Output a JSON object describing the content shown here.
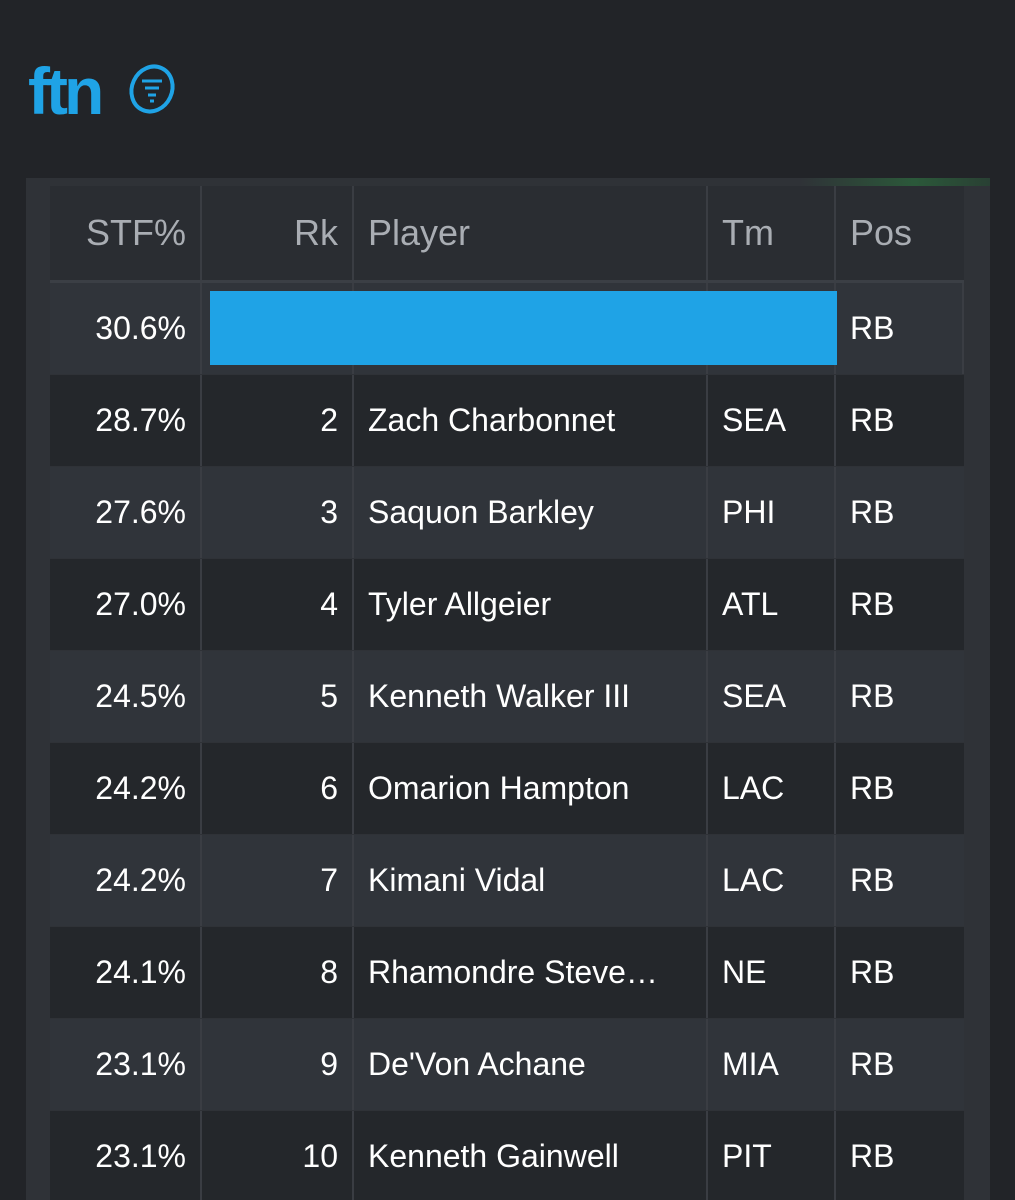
{
  "brand": {
    "logo_text": "ftn",
    "accent": "#1fa3e6"
  },
  "table": {
    "columns": [
      "STF%",
      "Rk",
      "Player",
      "Tm",
      "Pos"
    ],
    "highlight_color": "#1fa3e6",
    "rows": [
      {
        "stf": "30.6%",
        "rk": "",
        "player": "",
        "tm": "",
        "pos": "RB"
      },
      {
        "stf": "28.7%",
        "rk": "2",
        "player": "Zach Charbonnet",
        "tm": "SEA",
        "pos": "RB"
      },
      {
        "stf": "27.6%",
        "rk": "3",
        "player": "Saquon Barkley",
        "tm": "PHI",
        "pos": "RB"
      },
      {
        "stf": "27.0%",
        "rk": "4",
        "player": "Tyler Allgeier",
        "tm": "ATL",
        "pos": "RB"
      },
      {
        "stf": "24.5%",
        "rk": "5",
        "player": "Kenneth Walker III",
        "tm": "SEA",
        "pos": "RB"
      },
      {
        "stf": "24.2%",
        "rk": "6",
        "player": "Omarion Hampton",
        "tm": "LAC",
        "pos": "RB"
      },
      {
        "stf": "24.2%",
        "rk": "7",
        "player": "Kimani Vidal",
        "tm": "LAC",
        "pos": "RB"
      },
      {
        "stf": "24.1%",
        "rk": "8",
        "player": "Rhamondre Steve…",
        "tm": "NE",
        "pos": "RB"
      },
      {
        "stf": "23.1%",
        "rk": "9",
        "player": "De'Von Achane",
        "tm": "MIA",
        "pos": "RB"
      },
      {
        "stf": "23.1%",
        "rk": "10",
        "player": "Kenneth Gainwell",
        "tm": "PIT",
        "pos": "RB"
      }
    ]
  }
}
